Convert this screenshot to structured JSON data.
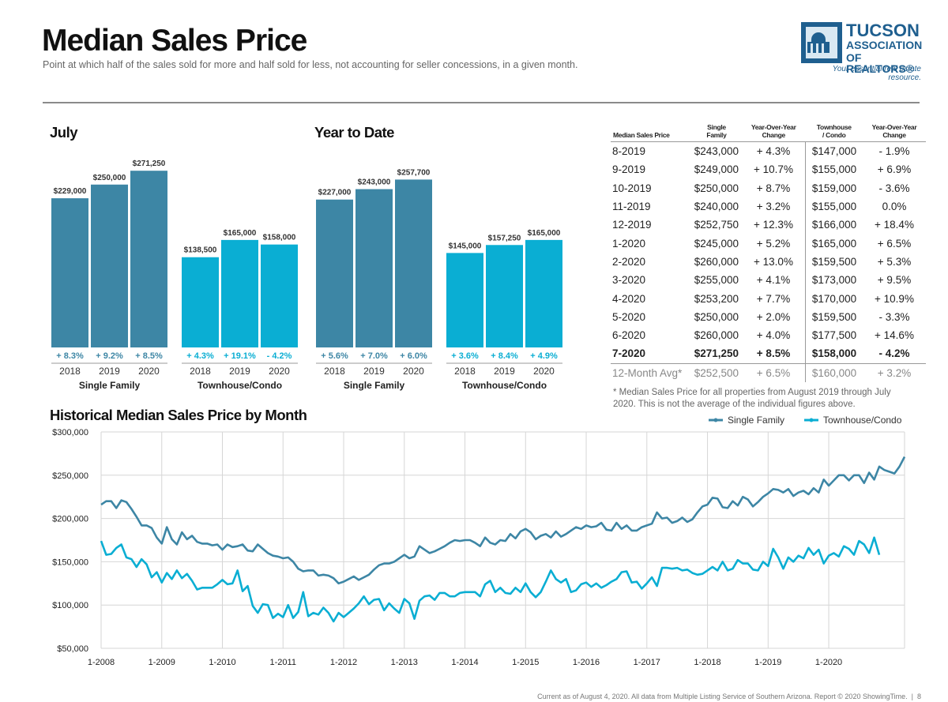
{
  "header": {
    "title": "Median Sales Price",
    "subtitle": "Point at which half of the sales sold for more and half sold for less, not accounting for seller concessions, in a given month."
  },
  "logo": {
    "line1": "TUCSON",
    "line2": "ASSOCIATION",
    "line3": "OF REALTORS®",
    "tagline": "Your essential real estate resource."
  },
  "colors": {
    "single_family": "#3d86a5",
    "townhouse": "#0aaed3",
    "grid": "#d6d6d6",
    "axis_text": "#222222"
  },
  "chart_data": [
    {
      "type": "bar",
      "title": "July",
      "groups": [
        {
          "name": "Single Family",
          "categories": [
            "2018",
            "2019",
            "2020"
          ],
          "values": [
            229000,
            250000,
            271250
          ],
          "labels": [
            "$229,000",
            "$250,000",
            "$271,250"
          ],
          "changes": [
            "+ 8.3%",
            "+ 9.2%",
            "+ 8.5%"
          ]
        },
        {
          "name": "Townhouse/Condo",
          "categories": [
            "2018",
            "2019",
            "2020"
          ],
          "values": [
            138500,
            165000,
            158000
          ],
          "labels": [
            "$138,500",
            "$165,000",
            "$158,000"
          ],
          "changes": [
            "+ 4.3%",
            "+ 19.1%",
            "- 4.2%"
          ]
        }
      ]
    },
    {
      "type": "bar",
      "title": "Year to Date",
      "groups": [
        {
          "name": "Single Family",
          "categories": [
            "2018",
            "2019",
            "2020"
          ],
          "values": [
            227000,
            243000,
            257700
          ],
          "labels": [
            "$227,000",
            "$243,000",
            "$257,700"
          ],
          "changes": [
            "+ 5.6%",
            "+ 7.0%",
            "+ 6.0%"
          ]
        },
        {
          "name": "Townhouse/Condo",
          "categories": [
            "2018",
            "2019",
            "2020"
          ],
          "values": [
            145000,
            157250,
            165000
          ],
          "labels": [
            "$145,000",
            "$157,250",
            "$165,000"
          ],
          "changes": [
            "+ 3.6%",
            "+ 8.4%",
            "+ 4.9%"
          ]
        }
      ]
    },
    {
      "type": "table",
      "columns": [
        "Median Sales Price",
        "Single Family",
        "Year-Over-Year Change",
        "Townhouse / Condo",
        "Year-Over-Year Change"
      ],
      "rows": [
        [
          "8-2019",
          "$243,000",
          "+ 4.3%",
          "$147,000",
          "- 1.9%"
        ],
        [
          "9-2019",
          "$249,000",
          "+ 10.7%",
          "$155,000",
          "+ 6.9%"
        ],
        [
          "10-2019",
          "$250,000",
          "+ 8.7%",
          "$159,000",
          "- 3.6%"
        ],
        [
          "11-2019",
          "$240,000",
          "+ 3.2%",
          "$155,000",
          "0.0%"
        ],
        [
          "12-2019",
          "$252,750",
          "+ 12.3%",
          "$166,000",
          "+ 18.4%"
        ],
        [
          "1-2020",
          "$245,000",
          "+ 5.2%",
          "$165,000",
          "+ 6.5%"
        ],
        [
          "2-2020",
          "$260,000",
          "+ 13.0%",
          "$159,500",
          "+ 5.3%"
        ],
        [
          "3-2020",
          "$255,000",
          "+ 4.1%",
          "$173,000",
          "+ 9.5%"
        ],
        [
          "4-2020",
          "$253,200",
          "+ 7.7%",
          "$170,000",
          "+ 10.9%"
        ],
        [
          "5-2020",
          "$250,000",
          "+ 2.0%",
          "$159,500",
          "- 3.3%"
        ],
        [
          "6-2020",
          "$260,000",
          "+ 4.0%",
          "$177,500",
          "+ 14.6%"
        ],
        [
          "7-2020",
          "$271,250",
          "+ 8.5%",
          "$158,000",
          "- 4.2%"
        ]
      ],
      "average_row": [
        "12-Month Avg*",
        "$252,500",
        "+ 6.5%",
        "$160,000",
        "+ 3.2%"
      ],
      "note": "* Median Sales Price for all properties from August 2019 through July 2020. This is not the average of the individual figures above."
    },
    {
      "type": "line",
      "title": "Historical Median Sales Price by Month",
      "x_start": "1-2008",
      "x_tick_labels": [
        "1-2008",
        "1-2009",
        "1-2010",
        "1-2011",
        "1-2012",
        "1-2013",
        "1-2014",
        "1-2015",
        "1-2016",
        "1-2017",
        "1-2018",
        "1-2019",
        "1-2020"
      ],
      "y_tick_labels": [
        "$300,000",
        "$250,000",
        "$200,000",
        "$150,000",
        "$100,000",
        "$50,000"
      ],
      "y_ticks": [
        300000,
        250000,
        200000,
        150000,
        100000,
        50000
      ],
      "ylim": [
        50000,
        300000
      ],
      "legend_position": "top-right",
      "series": [
        {
          "name": "Single Family",
          "values": [
            216000,
            220000,
            220000,
            212000,
            221000,
            219000,
            211000,
            202000,
            192000,
            192000,
            189000,
            178000,
            171000,
            190000,
            176000,
            170000,
            184000,
            176000,
            180000,
            173000,
            171000,
            171000,
            169000,
            170000,
            164000,
            170000,
            167000,
            168000,
            170000,
            163000,
            162000,
            170000,
            165000,
            160000,
            157000,
            156000,
            154000,
            155000,
            150000,
            142000,
            139000,
            140000,
            140000,
            134000,
            135000,
            134000,
            131000,
            125000,
            127000,
            130000,
            133000,
            129000,
            132000,
            135000,
            141000,
            146000,
            148000,
            148000,
            150000,
            154000,
            158000,
            154000,
            156000,
            168000,
            164000,
            160000,
            162000,
            165000,
            168000,
            172000,
            175000,
            174000,
            175000,
            175000,
            172000,
            168000,
            178000,
            172000,
            170000,
            175000,
            174000,
            182000,
            177000,
            185000,
            188000,
            184000,
            176000,
            180000,
            182000,
            178000,
            185000,
            179000,
            182000,
            186000,
            190000,
            188000,
            192000,
            190000,
            191000,
            195000,
            187000,
            186000,
            195000,
            188000,
            192000,
            186000,
            186000,
            190000,
            192000,
            194000,
            207000,
            200000,
            201000,
            195000,
            197000,
            201000,
            196000,
            199000,
            207000,
            214000,
            216000,
            224000,
            223000,
            213000,
            212000,
            220000,
            215000,
            225000,
            222000,
            214000,
            219000,
            225000,
            229000,
            234000,
            233000,
            230000,
            234000,
            226000,
            230000,
            232000,
            228000,
            235000,
            230000,
            245000,
            238000,
            244000,
            250000,
            250000,
            244000,
            250000,
            250000,
            241000,
            253000,
            245000,
            260000,
            256000,
            254000,
            252000,
            260000,
            271250
          ]
        },
        {
          "name": "Townhouse/Condo",
          "values": [
            174000,
            158000,
            159000,
            166000,
            170000,
            155000,
            153000,
            144000,
            153000,
            147000,
            132000,
            138000,
            126000,
            137000,
            130000,
            140000,
            131000,
            136000,
            128000,
            118000,
            120000,
            120000,
            120000,
            124000,
            129000,
            124000,
            125000,
            140000,
            116000,
            122000,
            99000,
            91000,
            101000,
            100000,
            85000,
            90000,
            86000,
            100000,
            85000,
            92000,
            115000,
            87000,
            91000,
            89000,
            97000,
            91000,
            81000,
            91000,
            86000,
            91000,
            96000,
            102000,
            110000,
            101000,
            106000,
            107000,
            94000,
            102000,
            96000,
            91000,
            107000,
            102000,
            84000,
            105000,
            110000,
            111000,
            106000,
            114000,
            114000,
            110000,
            110000,
            114000,
            115000,
            115000,
            115000,
            110000,
            124000,
            128000,
            115000,
            120000,
            114000,
            113000,
            120000,
            115000,
            125000,
            115000,
            109000,
            115000,
            127000,
            140000,
            130000,
            126000,
            130000,
            115000,
            117000,
            124000,
            126000,
            121000,
            125000,
            120000,
            123000,
            127000,
            130000,
            138000,
            139000,
            126000,
            127000,
            119000,
            125000,
            132000,
            122000,
            143000,
            143000,
            142000,
            143000,
            140000,
            141000,
            137000,
            135000,
            136000,
            140000,
            144000,
            140000,
            150000,
            140000,
            142000,
            152000,
            148000,
            148000,
            141000,
            140000,
            150000,
            145000,
            165000,
            155000,
            142000,
            155000,
            150000,
            157000,
            154000,
            166000,
            158000,
            164000,
            148000,
            157000,
            160000,
            156000,
            168000,
            165000,
            158000,
            174000,
            170000,
            160000,
            178000,
            158000
          ]
        }
      ]
    }
  ]
}
